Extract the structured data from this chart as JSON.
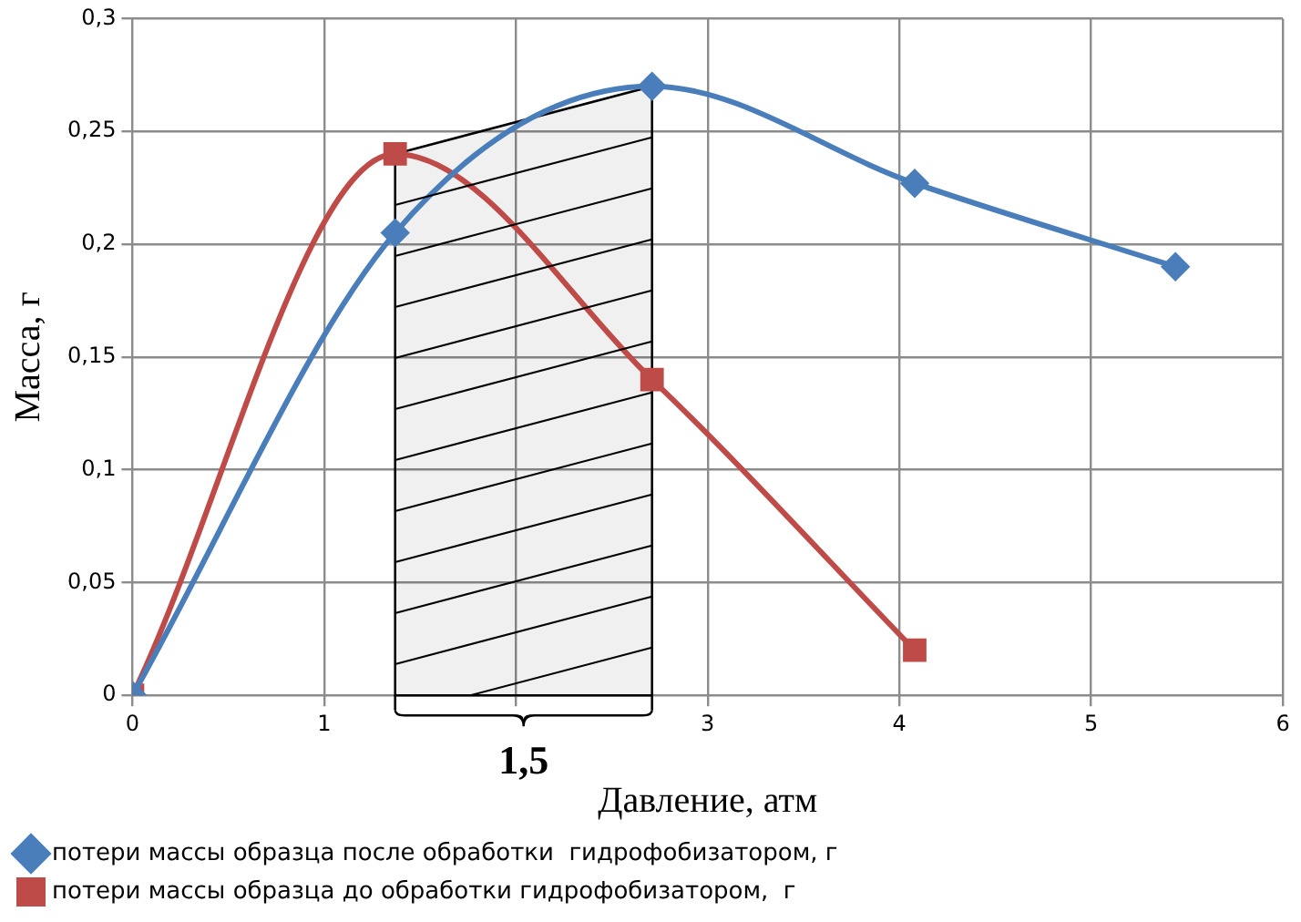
{
  "chart_data": {
    "type": "line",
    "xlabel": "Давление, атм",
    "ylabel": "Масса, г",
    "xlim": [
      0,
      6
    ],
    "xticks": [
      0,
      1,
      {
        "value": 2,
        "label": null
      },
      3,
      4,
      5,
      6
    ],
    "ylim": [
      0,
      0.3
    ],
    "yticks": [
      0,
      {
        "value": 0.05,
        "label": "0,05"
      },
      {
        "value": 0.1,
        "label": "0,1"
      },
      {
        "value": 0.15,
        "label": "0,15"
      },
      {
        "value": 0.2,
        "label": "0,2"
      },
      {
        "value": 0.25,
        "label": "0,25"
      },
      {
        "value": 0.3,
        "label": "0,3"
      }
    ],
    "grid": true,
    "legend": "bottom",
    "series": [
      {
        "name": "потери массы образца после обработки  гидрофобизатором, г",
        "color": "#4a7ebb",
        "marker": "diamond",
        "x": [
          0,
          1.37,
          2.71,
          4.08,
          5.44
        ],
        "values": [
          0,
          0.205,
          0.27,
          0.227,
          0.19
        ]
      },
      {
        "name": "потери массы образца до обработки гидрофобизатором,  г",
        "color": "#be4b48",
        "marker": "square",
        "x": [
          0,
          1.37,
          2.71,
          4.08
        ],
        "values": [
          0,
          0.24,
          0.14,
          0.02
        ]
      }
    ],
    "bands": [
      {
        "axis": "x",
        "from": 1.37,
        "to": 2.71,
        "label": "1,5",
        "color": "#000000"
      }
    ]
  }
}
